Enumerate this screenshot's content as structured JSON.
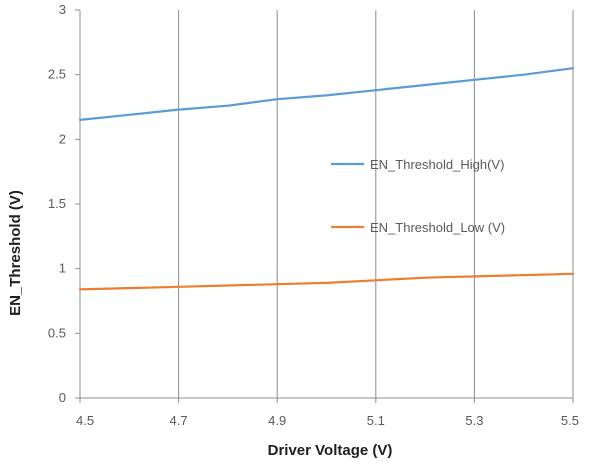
{
  "chart_data": {
    "type": "line",
    "title": "",
    "xlabel": "Driver Voltage (V)",
    "ylabel": "EN_Threshold (V)",
    "xlim": [
      4.5,
      5.5
    ],
    "ylim": [
      0,
      3
    ],
    "x_ticks": [
      4.5,
      4.7,
      4.9,
      5.1,
      5.3,
      5.5
    ],
    "x_tick_labels": [
      "4.5",
      "4.7",
      "4.9",
      "5.1",
      "5.3",
      "5.5"
    ],
    "y_ticks": [
      0,
      0.5,
      1,
      1.5,
      2,
      2.5,
      3
    ],
    "y_tick_labels": [
      "0",
      "0.5",
      "1",
      "1.5",
      "2",
      "2.5",
      "3"
    ],
    "grid": "vertical major gridlines",
    "legend_position": "right-center",
    "series": [
      {
        "name": "EN_Threshold_High(V)",
        "color": "#5b9bd5",
        "x": [
          4.5,
          4.6,
          4.7,
          4.8,
          4.9,
          5.0,
          5.1,
          5.2,
          5.3,
          5.4,
          5.5
        ],
        "values": [
          2.15,
          2.19,
          2.23,
          2.26,
          2.31,
          2.34,
          2.38,
          2.42,
          2.46,
          2.5,
          2.55
        ]
      },
      {
        "name": "EN_Threshold_Low (V)",
        "color": "#ed7d31",
        "x": [
          4.5,
          4.6,
          4.7,
          4.8,
          4.9,
          5.0,
          5.1,
          5.2,
          5.3,
          5.4,
          5.5
        ],
        "values": [
          0.84,
          0.85,
          0.86,
          0.87,
          0.88,
          0.89,
          0.91,
          0.93,
          0.94,
          0.95,
          0.96
        ]
      }
    ]
  }
}
